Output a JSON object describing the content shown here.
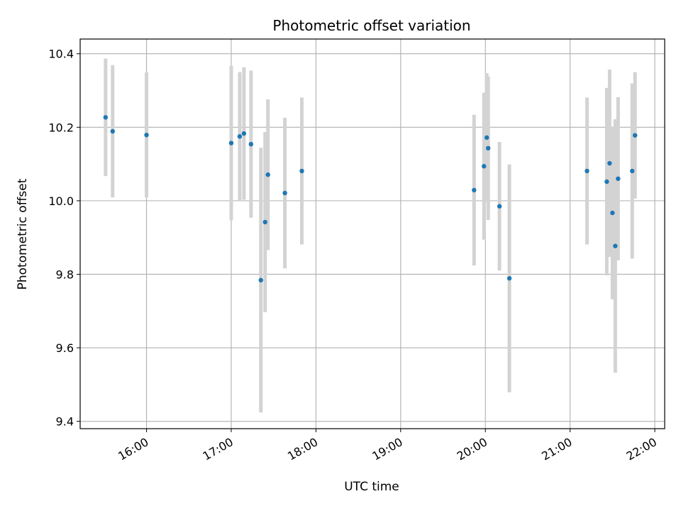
{
  "chart_data": {
    "type": "scatter",
    "title": "Photometric offset variation",
    "xlabel": "UTC time",
    "ylabel": "Photometric offset",
    "x_tick_labels": [
      "16:00",
      "17:00",
      "18:00",
      "19:00",
      "20:00",
      "21:00",
      "22:00"
    ],
    "y_tick_labels": [
      "9.4",
      "9.6",
      "9.8",
      "10.0",
      "10.2",
      "10.4"
    ],
    "y_ticks": [
      9.4,
      9.6,
      9.8,
      10.0,
      10.2,
      10.4
    ],
    "xlim": [
      "15:13",
      "22:07"
    ],
    "ylim": [
      9.38,
      10.44
    ],
    "grid": true,
    "point_color": "#1f77b4",
    "errorbar_color": "#d3d3d3",
    "points": [
      {
        "x": "15:31",
        "y": 10.227,
        "err": 0.16
      },
      {
        "x": "15:36",
        "y": 10.189,
        "err": 0.18
      },
      {
        "x": "16:00",
        "y": 10.179,
        "err": 0.17
      },
      {
        "x": "17:00",
        "y": 10.157,
        "err": 0.21
      },
      {
        "x": "17:06",
        "y": 10.175,
        "err": 0.175
      },
      {
        "x": "17:09",
        "y": 10.183,
        "err": 0.18
      },
      {
        "x": "17:14",
        "y": 10.154,
        "err": 0.2
      },
      {
        "x": "17:21",
        "y": 9.784,
        "err": 0.36
      },
      {
        "x": "17:24",
        "y": 9.942,
        "err": 0.245
      },
      {
        "x": "17:26",
        "y": 10.071,
        "err": 0.205
      },
      {
        "x": "17:38",
        "y": 10.021,
        "err": 0.205
      },
      {
        "x": "17:50",
        "y": 10.081,
        "err": 0.2
      },
      {
        "x": "19:52",
        "y": 10.029,
        "err": 0.205
      },
      {
        "x": "19:59",
        "y": 10.094,
        "err": 0.2
      },
      {
        "x": "20:01",
        "y": 10.172,
        "err": 0.175
      },
      {
        "x": "20:02",
        "y": 10.143,
        "err": 0.195
      },
      {
        "x": "20:10",
        "y": 9.985,
        "err": 0.175
      },
      {
        "x": "20:17",
        "y": 9.789,
        "err": 0.31
      },
      {
        "x": "21:12",
        "y": 10.081,
        "err": 0.2
      },
      {
        "x": "21:26",
        "y": 10.052,
        "err": 0.255
      },
      {
        "x": "21:28",
        "y": 10.102,
        "err": 0.255
      },
      {
        "x": "21:30",
        "y": 9.967,
        "err": 0.235
      },
      {
        "x": "21:32",
        "y": 9.877,
        "err": 0.345
      },
      {
        "x": "21:34",
        "y": 10.06,
        "err": 0.222
      },
      {
        "x": "21:44",
        "y": 10.081,
        "err": 0.238
      },
      {
        "x": "21:46",
        "y": 10.178,
        "err": 0.172
      }
    ]
  }
}
